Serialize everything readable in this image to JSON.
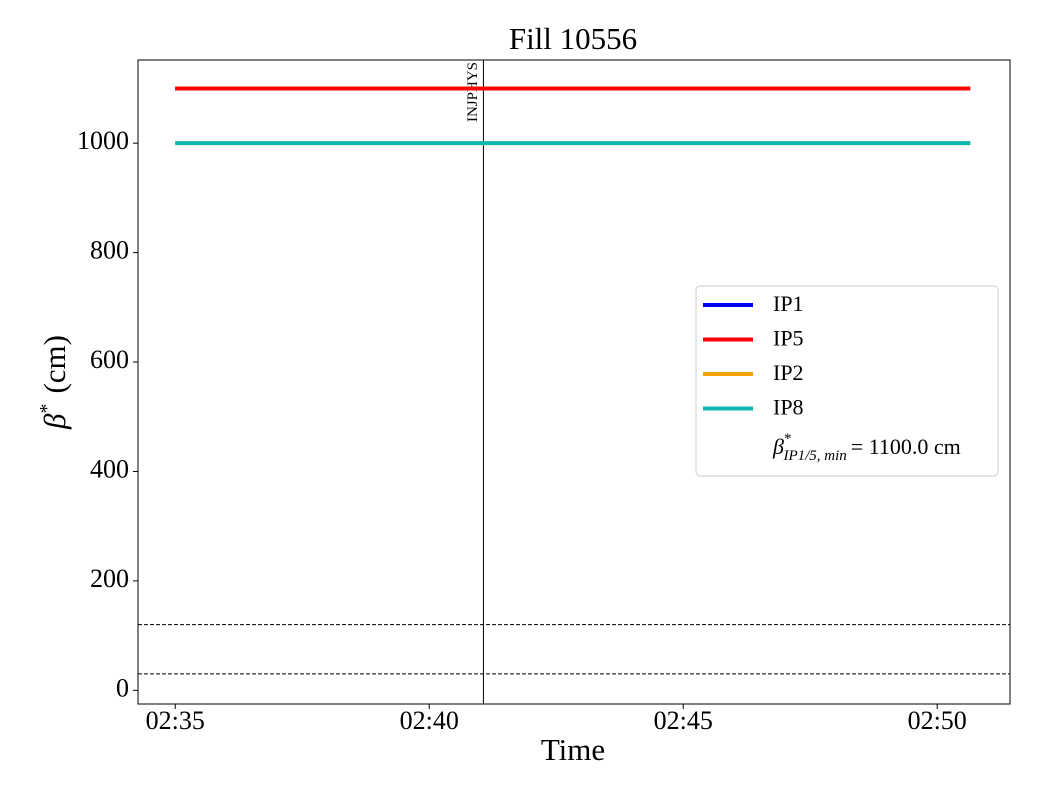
{
  "chart_data": {
    "type": "line",
    "title": "Fill 10556",
    "xlabel": "Time",
    "ylabel": {
      "symbol": "β",
      "sup": "*",
      "text": "(cm)"
    },
    "x": [
      "02:35",
      "02:50:39"
    ],
    "series": [
      {
        "name": "IP1",
        "color": "#0000ff",
        "values": [
          1100,
          1100
        ]
      },
      {
        "name": "IP5",
        "color": "#ff0000",
        "values": [
          1100,
          1100
        ]
      },
      {
        "name": "IP2",
        "color": "#f5a30a",
        "values": [
          1000,
          1000
        ]
      },
      {
        "name": "IP8",
        "color": "#10b9b0",
        "values": [
          1000,
          1000
        ]
      }
    ],
    "legend_note": {
      "symbol": "β",
      "sup": "*",
      "sub": "IP1/5, min",
      "text": "= 1100.0 cm"
    },
    "legend": "right",
    "hlines": [
      120,
      30
    ],
    "vline": {
      "x": "02:41:04",
      "label": "INJPHYS"
    },
    "xlim": [
      "02:34:16",
      "02:51:26"
    ],
    "xticks": [
      "02:35",
      "02:40",
      "02:45",
      "02:50"
    ],
    "ylim": [
      -25,
      1152
    ],
    "yticks": [
      0,
      200,
      400,
      600,
      800,
      1000
    ]
  }
}
